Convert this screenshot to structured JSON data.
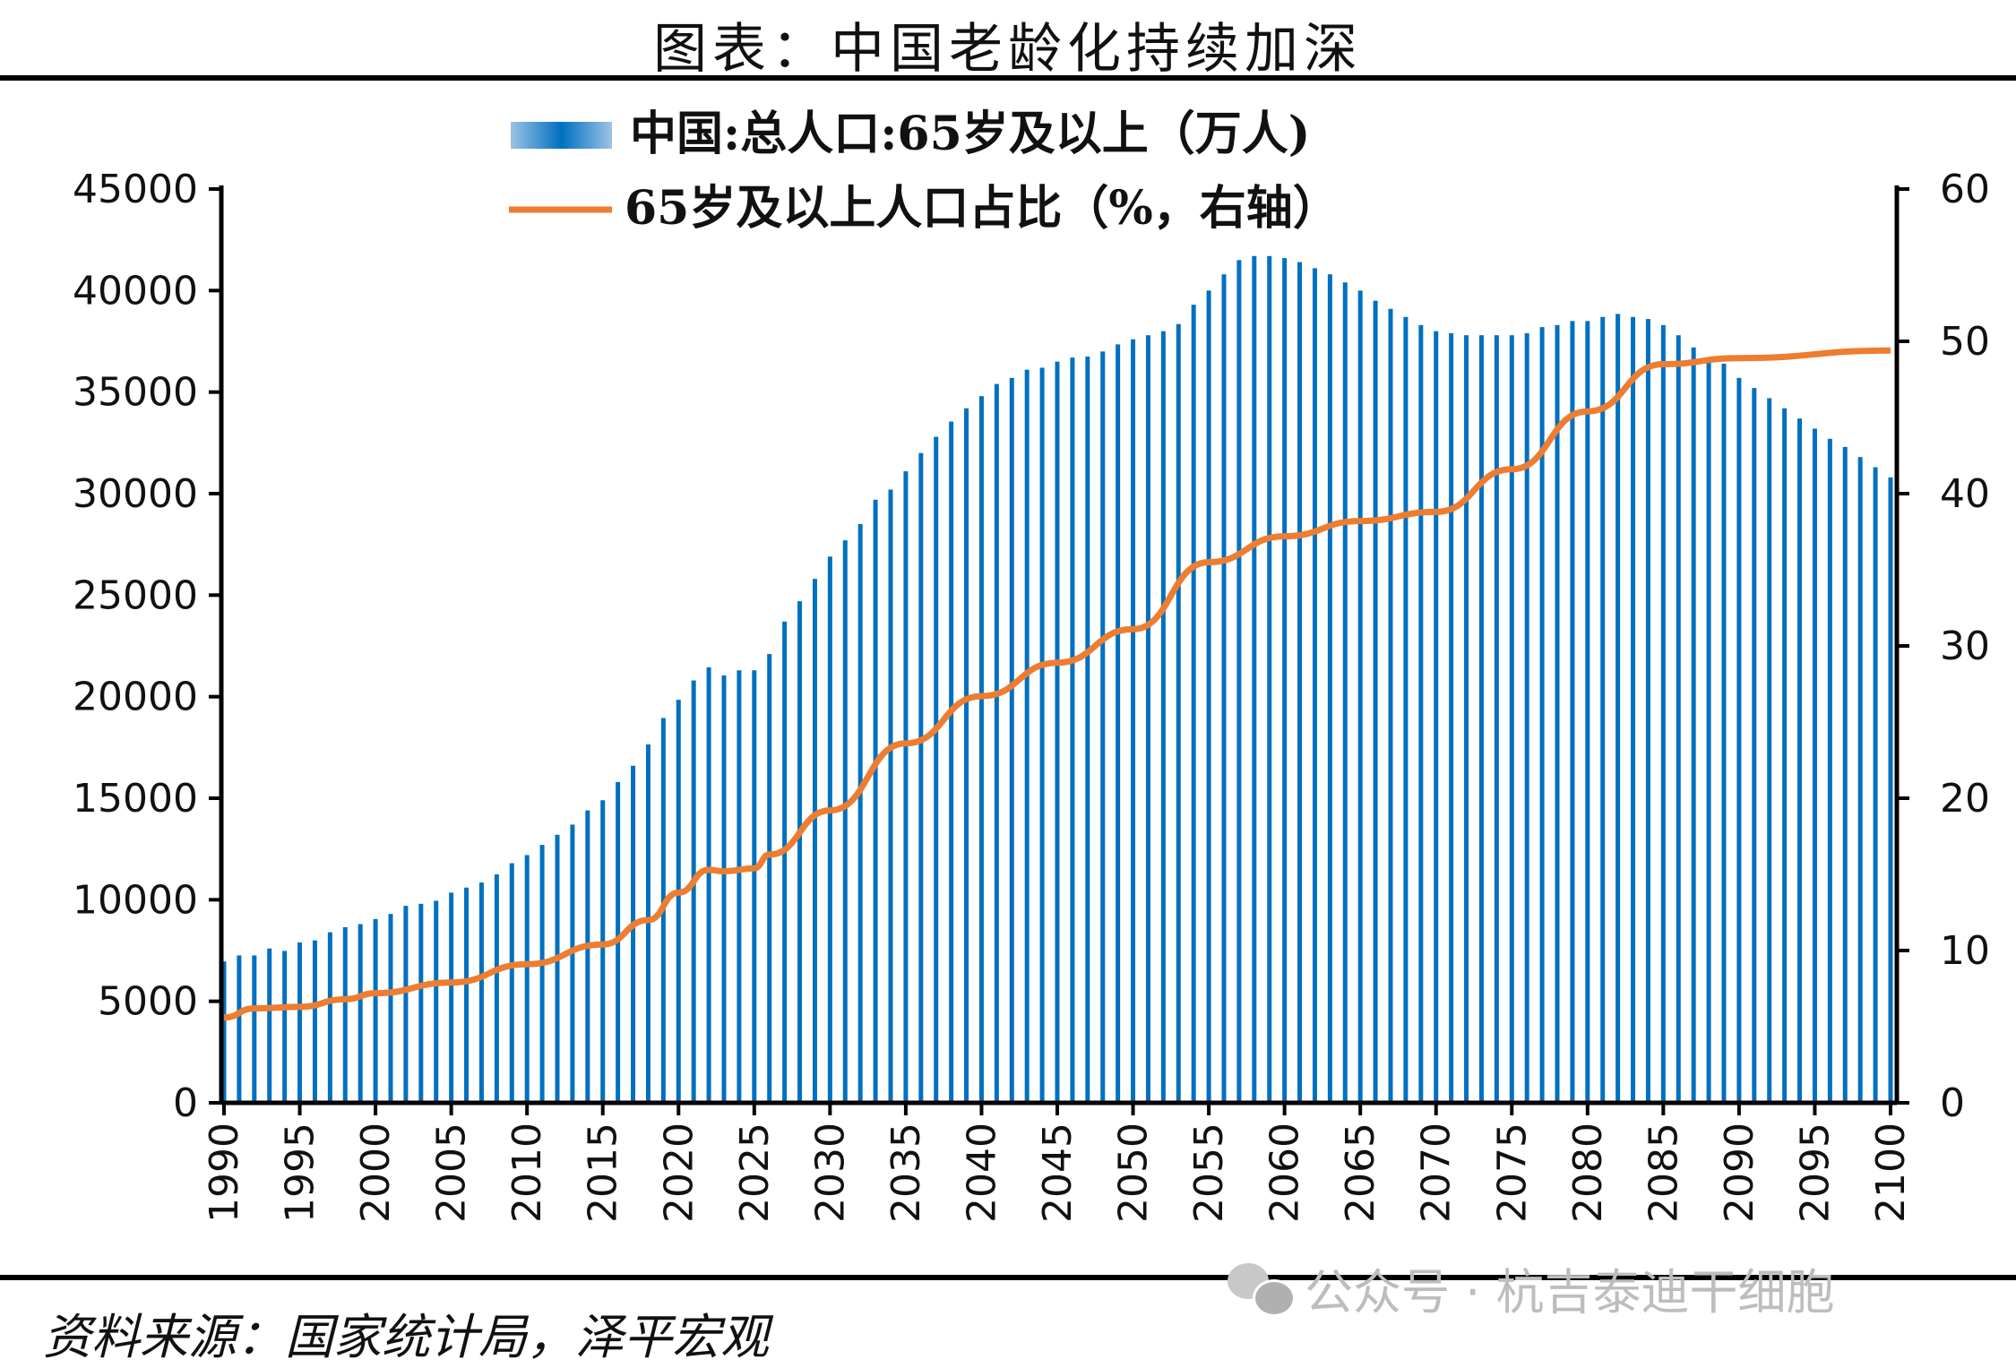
{
  "title": "图表：中国老龄化持续加深",
  "source": "资料来源：国家统计局，泽平宏观",
  "watermark": "公众号 · 杭吉泰迪干细胞",
  "colors": {
    "bar": "#0070C0",
    "line": "#ED7D31",
    "axis": "#000000"
  },
  "chart_data": {
    "type": "bar+line",
    "legend": [
      "中国:总人口:65岁及以上（万人)",
      "65岁及以上人口占比（%，右轴）"
    ],
    "legend_placement": "top-center",
    "grid": false,
    "x_ticks": [
      "1990",
      "1995",
      "2000",
      "2005",
      "2010",
      "2015",
      "2020",
      "2025",
      "2030",
      "2035",
      "2040",
      "2045",
      "2050",
      "2055",
      "2060",
      "2065",
      "2070",
      "2075",
      "2080",
      "2085",
      "2090",
      "2095",
      "2100"
    ],
    "y_left": {
      "range": [
        0,
        45000
      ],
      "ticks": [
        "0",
        "5000",
        "10000",
        "15000",
        "20000",
        "25000",
        "30000",
        "35000",
        "40000",
        "45000"
      ]
    },
    "y_right": {
      "range": [
        0,
        60
      ],
      "ticks": [
        "0",
        "10",
        "20",
        "30",
        "40",
        "50",
        "60"
      ]
    },
    "bar_series": {
      "name": "中国:总人口:65岁及以上（万人)",
      "start_year": 1990,
      "values": [
        6960,
        7260,
        7260,
        7600,
        7480,
        7900,
        8000,
        8400,
        8650,
        8800,
        9050,
        9300,
        9700,
        9800,
        9950,
        10350,
        10600,
        10850,
        11250,
        11800,
        12200,
        12700,
        13200,
        13700,
        14400,
        14900,
        15800,
        16600,
        17650,
        18950,
        19850,
        20800,
        21450,
        21050,
        21300,
        21300,
        22100,
        23700,
        24700,
        25800,
        26900,
        27700,
        28500,
        29700,
        30200,
        31100,
        32000,
        32800,
        33550,
        34200,
        34800,
        35400,
        35700,
        36100,
        36200,
        36500,
        36700,
        36750,
        37000,
        37350,
        37600,
        37800,
        38000,
        38350,
        39300,
        40000,
        40800,
        41500,
        41700,
        41700,
        41600,
        41400,
        41100,
        40800,
        40400,
        40000,
        39500,
        39100,
        38700,
        38300,
        38000,
        37900,
        37800,
        37800,
        37800,
        37800,
        37900,
        38200,
        38300,
        38500,
        38500,
        38700,
        38850,
        38700,
        38600,
        38300,
        37800,
        37200,
        36700,
        36400,
        35700,
        35200,
        34700,
        34200,
        33700,
        33200,
        32700,
        32300,
        31800,
        31300,
        30800
      ]
    },
    "line_series": {
      "name": "65岁及以上人口占比（%，右轴）",
      "points": [
        [
          1990,
          5.6
        ],
        [
          1992,
          6.2
        ],
        [
          1995,
          6.3
        ],
        [
          1998,
          6.8
        ],
        [
          2000,
          7.2
        ],
        [
          2005,
          7.9
        ],
        [
          2010,
          9.1
        ],
        [
          2015,
          10.4
        ],
        [
          2018,
          12.0
        ],
        [
          2020,
          13.8
        ],
        [
          2022,
          15.3
        ],
        [
          2023,
          15.2
        ],
        [
          2025,
          15.4
        ],
        [
          2026,
          16.3
        ],
        [
          2030,
          19.2
        ],
        [
          2035,
          23.6
        ],
        [
          2040,
          26.7
        ],
        [
          2045,
          28.9
        ],
        [
          2050,
          31.1
        ],
        [
          2055,
          35.5
        ],
        [
          2060,
          37.2
        ],
        [
          2065,
          38.2
        ],
        [
          2070,
          38.8
        ],
        [
          2075,
          41.6
        ],
        [
          2080,
          45.4
        ],
        [
          2085,
          48.5
        ],
        [
          2090,
          48.9
        ],
        [
          2100,
          49.4
        ]
      ]
    }
  }
}
